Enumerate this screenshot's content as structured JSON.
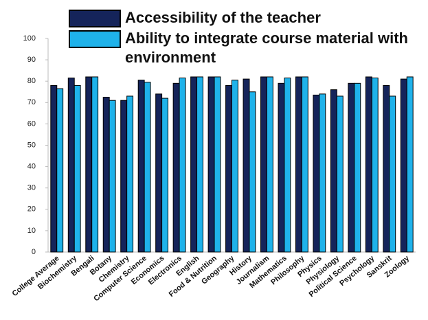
{
  "chart_data": {
    "type": "bar",
    "categories": [
      "College Average",
      "Biochemistry",
      "Bengali",
      "Botany",
      "Chemistry",
      "Computer Science",
      "Economics",
      "Electronics",
      "English",
      "Food & Nutrition",
      "Geography",
      "History",
      "Journalism",
      "Mathematics",
      "Philosophy",
      "Physics",
      "Physiology",
      "Political Science",
      "Psychology",
      "Sanskrit",
      "Zoology"
    ],
    "series": [
      {
        "name": "Accessibility of the teacher",
        "color": "#15245a",
        "values": [
          78,
          81.5,
          82,
          72.5,
          71,
          80.5,
          74,
          79,
          82,
          82,
          78,
          81,
          82,
          79,
          82,
          73.5,
          76,
          79,
          82,
          78,
          81
        ]
      },
      {
        "name": "Ability to integrate course material with environment",
        "color": "#1fb2ea",
        "values": [
          76.5,
          78,
          82,
          71,
          73,
          79.5,
          72,
          81.5,
          82,
          82,
          80.5,
          75,
          82,
          81.5,
          82,
          74,
          73,
          79,
          81.5,
          73,
          82
        ]
      }
    ],
    "ylim": [
      0,
      100
    ],
    "yticks": [
      0,
      10,
      20,
      30,
      40,
      50,
      60,
      70,
      80,
      90,
      100
    ],
    "grid": false,
    "legend": "top"
  }
}
